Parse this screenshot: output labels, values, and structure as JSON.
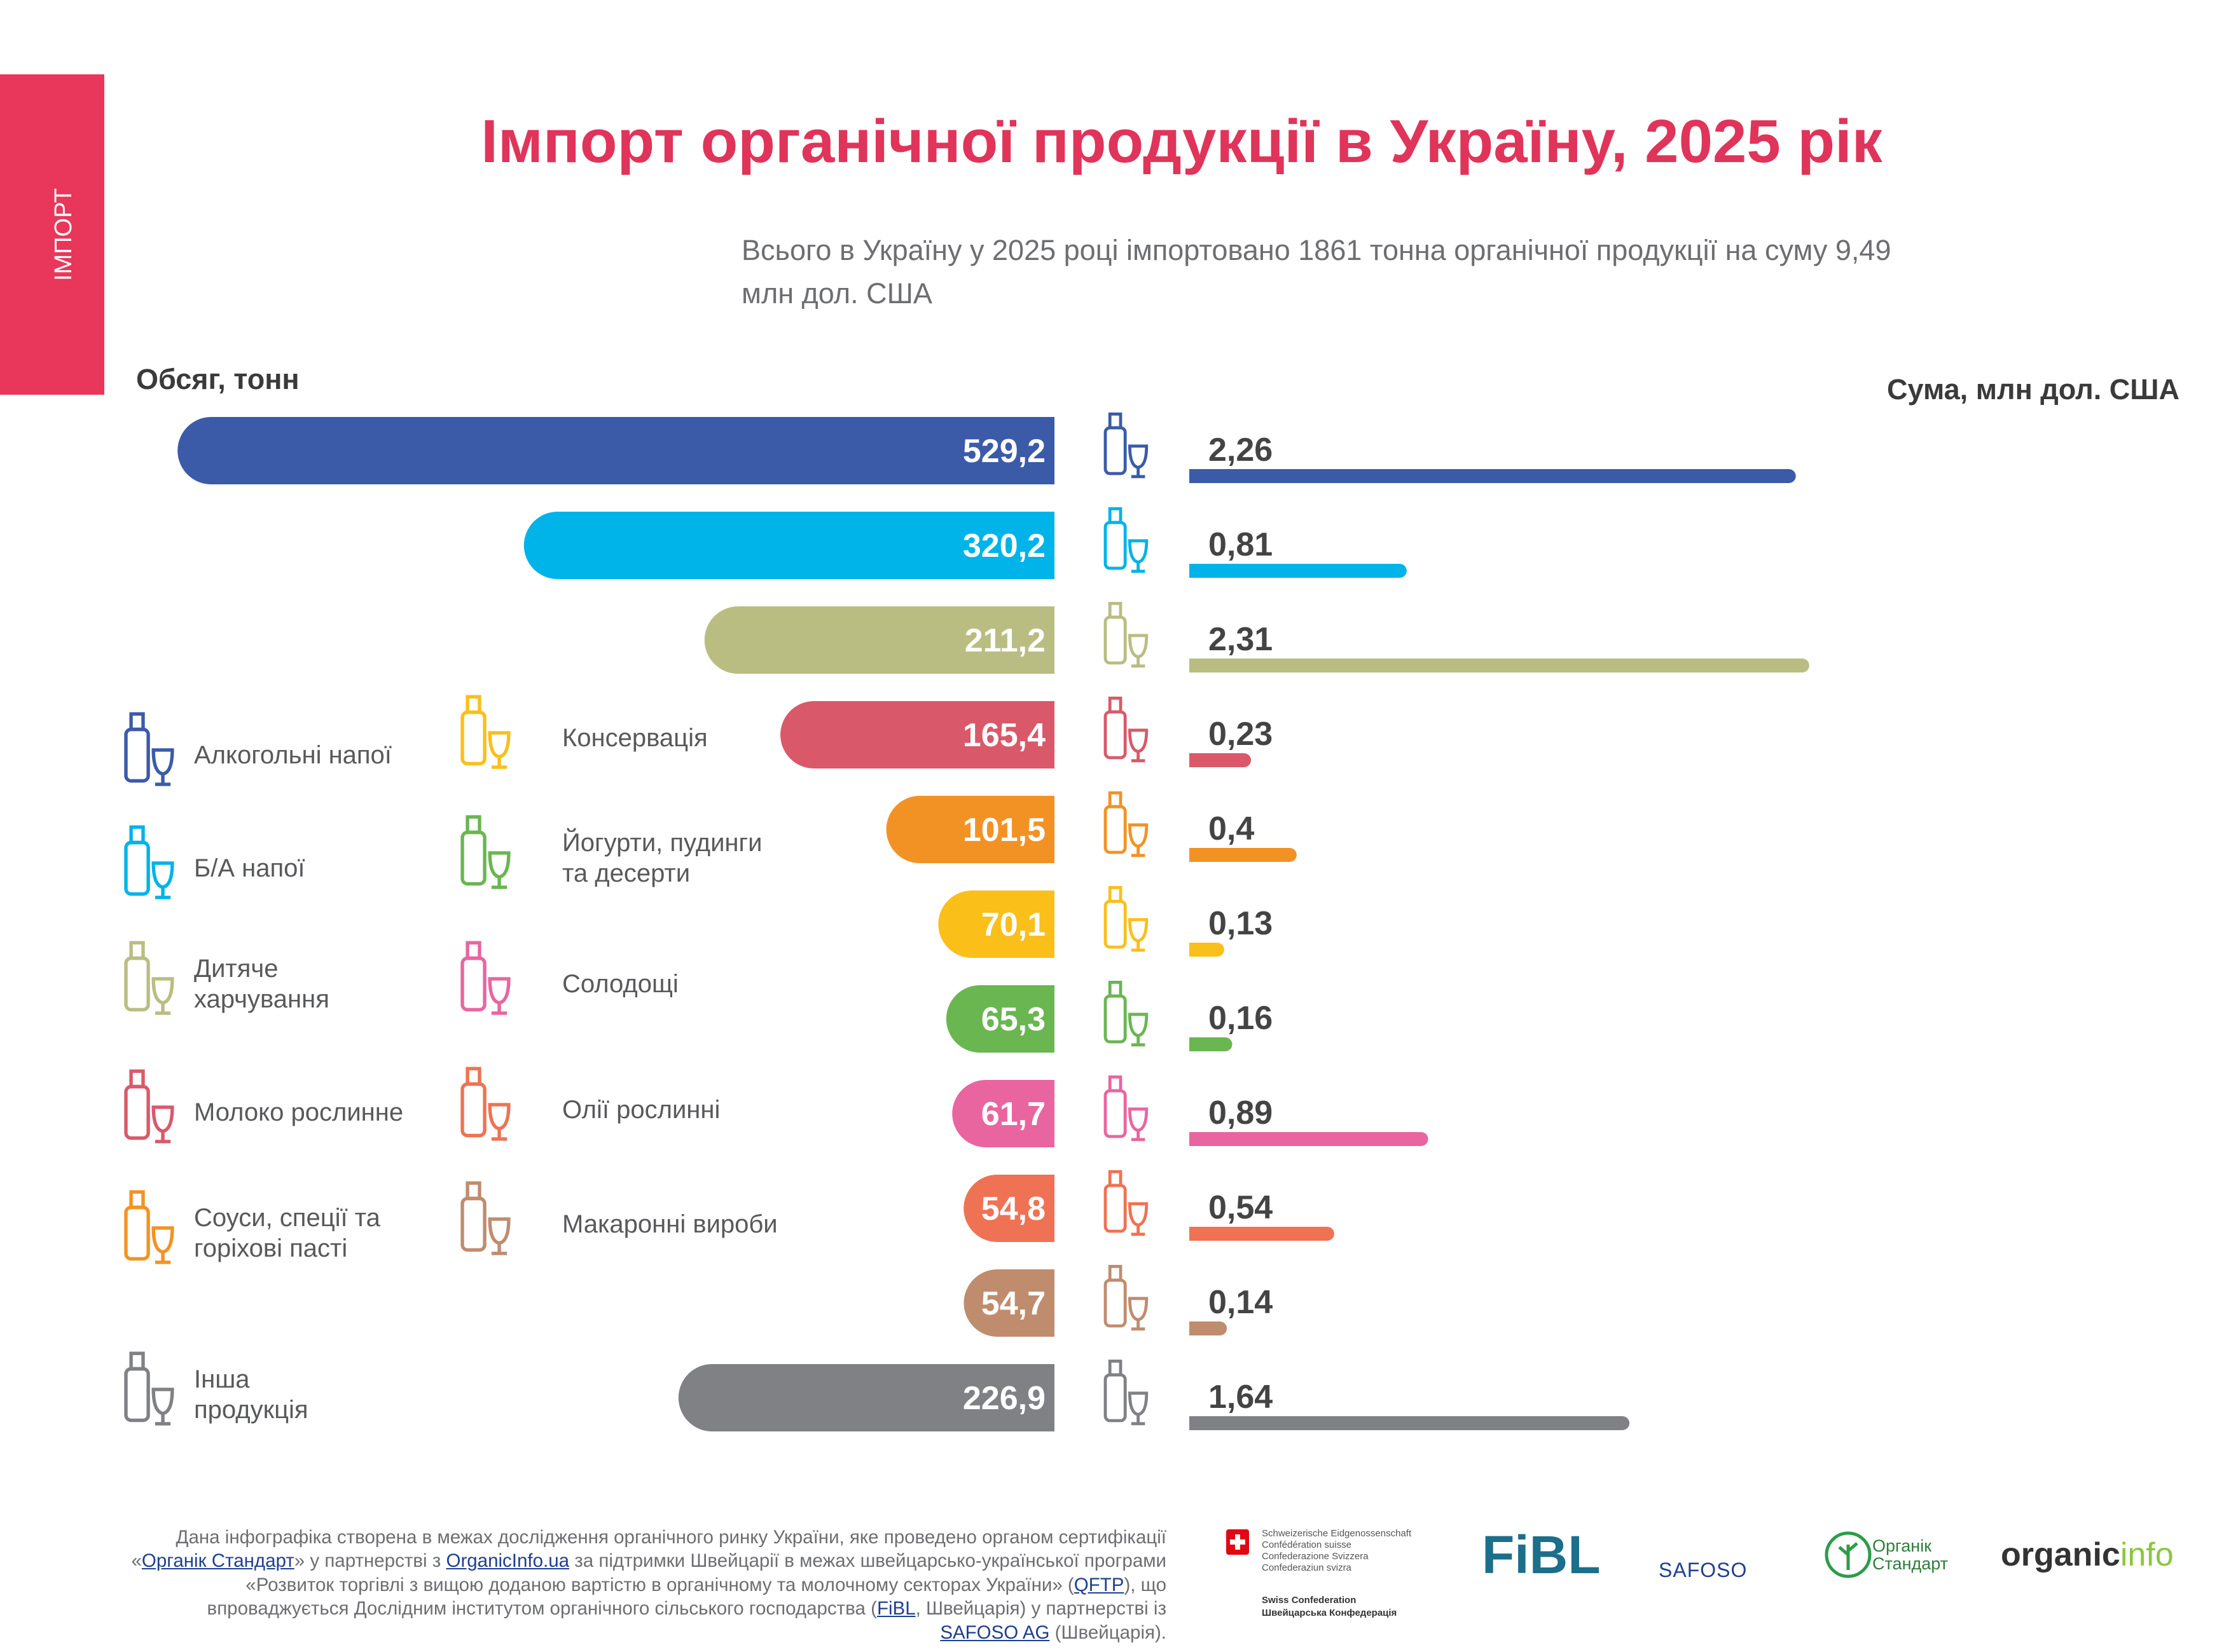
{
  "side_label": "ІМПОРТ",
  "title": "Імпорт органічної продукції в Україну, 2025 рік",
  "subtitle": "Всього в Україну у 2025 році імпортовано 1861 тонна органічної продукції на суму 9,49 млн дол. США",
  "chart_data": {
    "type": "bar",
    "categories": [
      "Алкогольні напої",
      "Б/А напої",
      "Дитяче\nхарчування",
      "Молоко рослинне",
      "Соуси, спеції та\nгоріхові пасті",
      "Консервація",
      "Йогурти, пудинги\nта десерти",
      "Солодощі",
      "Олії рослинні",
      "Макаронні вироби",
      "Інша\nпродукція"
    ],
    "colors": [
      "#3b5ba9",
      "#00b3e8",
      "#b9bd82",
      "#d9596a",
      "#f39224",
      "#fbbf1a",
      "#6ab651",
      "#e965a0",
      "#ef7254",
      "#c08c6e",
      "#808184"
    ],
    "series": [
      {
        "name": "Обсяг, тонн",
        "values": [
          529.2,
          320.2,
          211.2,
          165.4,
          101.5,
          70.1,
          65.3,
          61.7,
          54.8,
          54.7,
          226.9
        ],
        "value_labels": [
          "529,2",
          "320,2",
          "211,2",
          "165,4",
          "101,5",
          "70,1",
          "65,3",
          "61,7",
          "54,8",
          "54,7",
          "226,9"
        ],
        "xlim": [
          0,
          550
        ]
      },
      {
        "name": "Сума, млн дол. США",
        "values": [
          2.26,
          0.81,
          2.31,
          0.23,
          0.4,
          0.13,
          0.16,
          0.89,
          0.54,
          0.14,
          1.64
        ],
        "value_labels": [
          "2,26",
          "0,81",
          "2,31",
          "0,23",
          "0,4",
          "0,13",
          "0,16",
          "0,89",
          "0,54",
          "0,14",
          "1,64"
        ],
        "xlim": [
          0,
          2.5
        ]
      }
    ]
  },
  "footer": [
    {
      "text": "Дана інфографіка створена в межах дослідження органічного ринку України, яке проведено органом сертифікації «"
    },
    {
      "text": "Органік Стандарт",
      "link": true
    },
    {
      "text": "» у партнерстві з "
    },
    {
      "text": "OrganicInfo.ua",
      "link": true
    },
    {
      "text": " за підтримки Швейцарії в межах швейцарсько-української програми «Розвиток торгівлі з вищою доданою вартістю в органічному та молочному секторах України» ("
    },
    {
      "text": "QFTP",
      "link": true
    },
    {
      "text": "), що впроваджується Дослідним інститутом органічного сільського господарства ("
    },
    {
      "text": "FiBL",
      "link": true
    },
    {
      "text": ", Швейцарія) у партнерстві із "
    },
    {
      "text": "SAFOSO AG",
      "link": true
    },
    {
      "text": " (Швейцарія)."
    }
  ],
  "logos": {
    "swiss": [
      "Schweizerische Eidgenossenschaft",
      "Confédération suisse",
      "Confederazione Svizzera",
      "Confederaziun svizra"
    ],
    "swiss_en": "Swiss Confederation",
    "swiss_ua": "Швейцарська Конфедерація",
    "fibl": "FiBL",
    "safoso": "SAFOSO",
    "organic_standard": "Органік\nСтандарт",
    "organicinfo": [
      "organic",
      "info"
    ]
  }
}
